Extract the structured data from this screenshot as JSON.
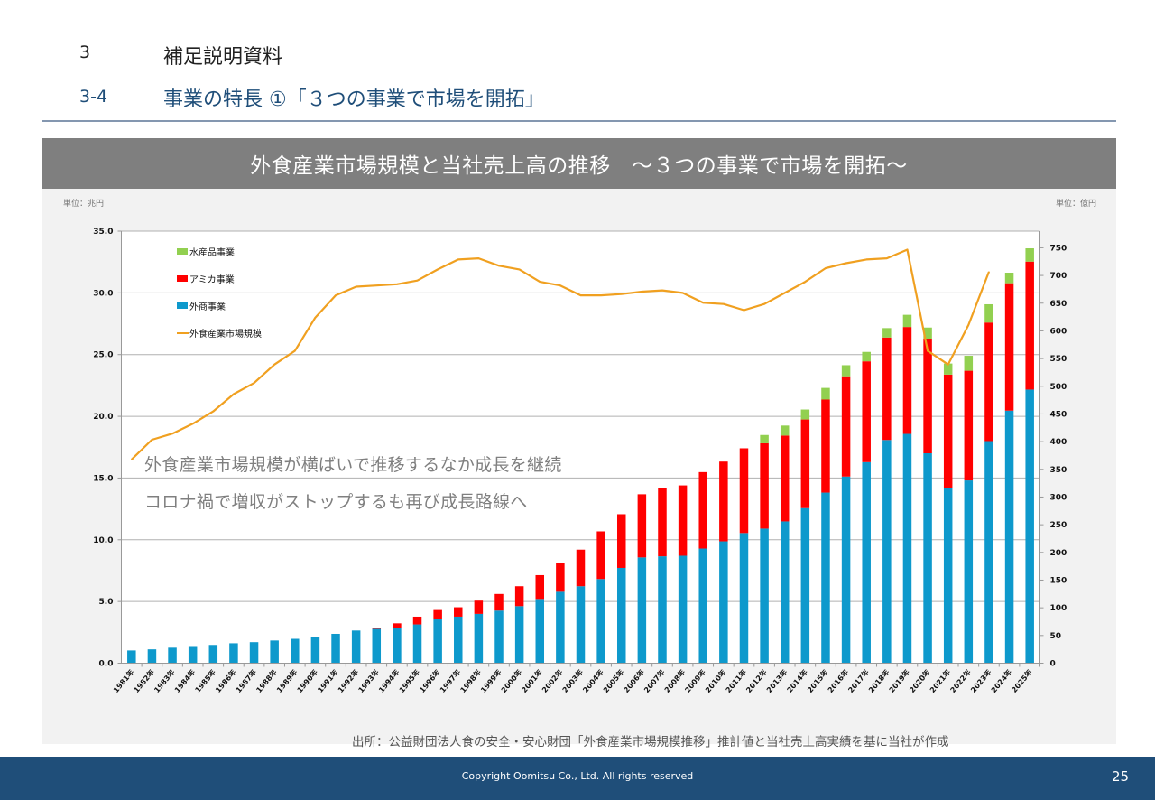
{
  "header": {
    "section_number": "3",
    "section_title": "補足説明資料",
    "subsection_number": "3-4",
    "subsection_title": "事業の特長 ①「３つの事業で市場を開拓」"
  },
  "panel": {
    "title": "外食産業市場規模と当社売上高の推移　～３つの事業で市場を開拓～",
    "unit_left": "単位：兆円",
    "unit_right": "単位：億円",
    "annotations": [
      "外食産業市場規模が横ばいで推移するなか成長を継続",
      "コロナ禍で増収がストップするも再び成長路線へ"
    ],
    "source": "出所：公益財団法人食の安全・安心財団「外食産業市場規模推移」推計値と当社売上高実績を基に当社が作成"
  },
  "footer": {
    "copyright": "Copyright Oomitsu Co., Ltd. All rights reserved",
    "page_number": "25"
  },
  "chart_data": {
    "type": "bar",
    "subtype": "stacked bar + line (dual axis)",
    "title": "外食産業市場規模と当社売上高の推移　～３つの事業で市場を開拓～",
    "xlabel": "",
    "ylabel_left": "単位：兆円",
    "ylabel_right": "単位：億円",
    "ylim_left": [
      0,
      35
    ],
    "yticks_left": [
      "0.0",
      "5.0",
      "10.0",
      "15.0",
      "20.0",
      "25.0",
      "30.0",
      "35.0"
    ],
    "ylim_right": [
      0,
      780
    ],
    "yticks_right": [
      "0",
      "50",
      "100",
      "150",
      "200",
      "250",
      "300",
      "350",
      "400",
      "450",
      "500",
      "550",
      "600",
      "650",
      "700",
      "750"
    ],
    "grid": true,
    "legend_position": "top-left (inside plot)",
    "categories": [
      "1981年",
      "1982年",
      "1983年",
      "1984年",
      "1985年",
      "1986年",
      "1987年",
      "1988年",
      "1989年",
      "1990年",
      "1991年",
      "1992年",
      "1993年",
      "1994年",
      "1995年",
      "1996年",
      "1997年",
      "1998年",
      "1999年",
      "2000年",
      "2001年",
      "2002年",
      "2003年",
      "2004年",
      "2005年",
      "2006年",
      "2007年",
      "2008年",
      "2009年",
      "2010年",
      "2011年",
      "2012年",
      "2013年",
      "2014年",
      "2015年",
      "2016年",
      "2017年",
      "2018年",
      "2019年",
      "2020年",
      "2021年",
      "2022年",
      "2023年",
      "2024年",
      "2025年"
    ],
    "series": [
      {
        "name": "外商事業",
        "kind": "bar",
        "axis": "right",
        "color": "#0e99cc",
        "values": [
          23,
          25,
          28,
          31,
          33,
          36,
          38,
          41,
          44,
          48,
          53,
          59,
          62,
          64,
          70,
          80,
          84,
          89,
          95,
          103,
          116,
          129,
          139,
          152,
          172,
          191,
          193,
          194,
          207,
          220,
          235,
          243,
          256,
          280,
          308,
          337,
          363,
          403,
          414,
          379,
          316,
          330,
          401,
          456,
          494
        ]
      },
      {
        "name": "アミカ事業",
        "kind": "bar",
        "axis": "right",
        "color": "#ff0000",
        "values": [
          0,
          0,
          0,
          0,
          0,
          0,
          0,
          0,
          0,
          0,
          0,
          0,
          2,
          8,
          14,
          16,
          17,
          24,
          30,
          36,
          43,
          52,
          66,
          86,
          97,
          114,
          123,
          127,
          138,
          144,
          153,
          154,
          155,
          160,
          168,
          181,
          182,
          185,
          193,
          207,
          205,
          198,
          214,
          230,
          231
        ]
      },
      {
        "name": "水産品事業",
        "kind": "bar",
        "axis": "right",
        "color": "#92d050",
        "values": [
          0,
          0,
          0,
          0,
          0,
          0,
          0,
          0,
          0,
          0,
          0,
          0,
          0,
          0,
          0,
          0,
          0,
          0,
          0,
          0,
          0,
          0,
          0,
          0,
          0,
          0,
          0,
          0,
          0,
          0,
          0,
          15,
          18,
          18,
          21,
          20,
          17,
          17,
          22,
          20,
          20,
          27,
          33,
          19,
          24
        ]
      },
      {
        "name": "外食産業市場規模",
        "kind": "line",
        "axis": "left",
        "color": "#f0a020",
        "values": [
          16.5,
          18.1,
          18.6,
          19.4,
          20.4,
          21.8,
          22.7,
          24.2,
          25.3,
          28.0,
          29.8,
          30.5,
          30.6,
          30.7,
          31.0,
          31.9,
          32.7,
          32.8,
          32.2,
          31.9,
          30.9,
          30.6,
          29.8,
          29.8,
          29.9,
          30.1,
          30.2,
          30.0,
          29.2,
          29.1,
          28.6,
          29.1,
          30.0,
          30.9,
          32.0,
          32.4,
          32.7,
          32.8,
          33.5,
          25.3,
          24.2,
          27.4,
          31.7,
          null,
          null
        ]
      }
    ],
    "legend": [
      "水産品事業",
      "アミカ事業",
      "外商事業",
      "外食産業市場規模"
    ]
  }
}
